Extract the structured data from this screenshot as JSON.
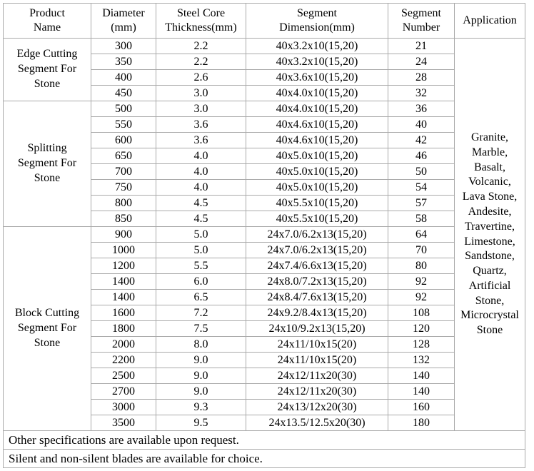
{
  "table": {
    "columns": [
      "Product\nName",
      "Diameter\n(mm)",
      "Steel Core\nThickness(mm)",
      "Segment\nDimension(mm)",
      "Segment\nNumber",
      "Application"
    ],
    "groups": [
      {
        "name": "Edge Cutting\nSegment For\nStone",
        "rows": [
          [
            "300",
            "2.2",
            "40x3.2x10(15,20)",
            "21"
          ],
          [
            "350",
            "2.2",
            "40x3.2x10(15,20)",
            "24"
          ],
          [
            "400",
            "2.6",
            "40x3.6x10(15,20)",
            "28"
          ],
          [
            "450",
            "3.0",
            "40x4.0x10(15,20)",
            "32"
          ]
        ]
      },
      {
        "name": "Splitting\nSegment For\nStone",
        "rows": [
          [
            "500",
            "3.0",
            "40x4.0x10(15,20)",
            "36"
          ],
          [
            "550",
            "3.6",
            "40x4.6x10(15,20)",
            "40"
          ],
          [
            "600",
            "3.6",
            "40x4.6x10(15,20)",
            "42"
          ],
          [
            "650",
            "4.0",
            "40x5.0x10(15,20)",
            "46"
          ],
          [
            "700",
            "4.0",
            "40x5.0x10(15,20)",
            "50"
          ],
          [
            "750",
            "4.0",
            "40x5.0x10(15,20)",
            "54"
          ],
          [
            "800",
            "4.5",
            "40x5.5x10(15,20)",
            "57"
          ],
          [
            "850",
            "4.5",
            "40x5.5x10(15,20)",
            "58"
          ]
        ]
      },
      {
        "name": "Block Cutting\nSegment For\nStone",
        "rows": [
          [
            "900",
            "5.0",
            "24x7.0/6.2x13(15,20)",
            "64"
          ],
          [
            "1000",
            "5.0",
            "24x7.0/6.2x13(15,20)",
            "70"
          ],
          [
            "1200",
            "5.5",
            "24x7.4/6.6x13(15,20)",
            "80"
          ],
          [
            "1400",
            "6.0",
            "24x8.0/7.2x13(15,20)",
            "92"
          ],
          [
            "1400",
            "6.5",
            "24x8.4/7.6x13(15,20)",
            "92"
          ],
          [
            "1600",
            "7.2",
            "24x9.2/8.4x13(15,20)",
            "108"
          ],
          [
            "1800",
            "7.5",
            "24x10/9.2x13(15,20)",
            "120"
          ],
          [
            "2000",
            "8.0",
            "24x11/10x15(20)",
            "128"
          ],
          [
            "2200",
            "9.0",
            "24x11/10x15(20)",
            "132"
          ],
          [
            "2500",
            "9.0",
            "24x12/11x20(30)",
            "140"
          ],
          [
            "2700",
            "9.0",
            "24x12/11x20(30)",
            "140"
          ],
          [
            "3000",
            "9.3",
            "24x13/12x20(30)",
            "160"
          ],
          [
            "3500",
            "9.5",
            "24x13.5/12.5x20(30)",
            "180"
          ]
        ]
      }
    ],
    "application": "Granite, Marble, Basalt, Volcanic, Lava Stone, Andesite, Travertine, Limestone, Sandstone, Quartz, Artificial Stone, Microcrystal Stone",
    "footnotes": [
      "Other specifications are available upon request.",
      "Silent and non-silent blades are available for choice."
    ]
  },
  "colors": {
    "border": "#aaaaaa",
    "text": "#000000",
    "background": "#ffffff"
  }
}
